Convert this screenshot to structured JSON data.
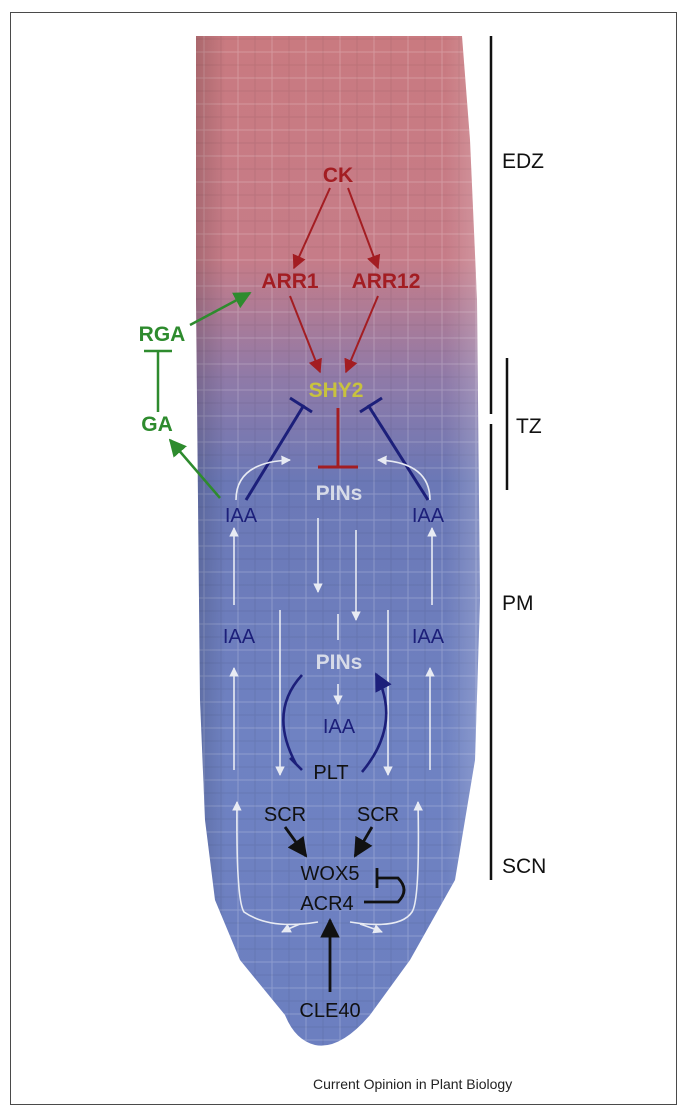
{
  "zones": {
    "edz": "EDZ",
    "tz": "TZ",
    "pm": "PM",
    "scn": "SCN"
  },
  "nodes": {
    "ck": "CK",
    "arr1": "ARR1",
    "arr12": "ARR12",
    "shy2": "SHY2",
    "rga": "RGA",
    "ga": "GA",
    "pins_top": "PINs",
    "pins_mid": "PINs",
    "iaa_left_top": "IAA",
    "iaa_right_top": "IAA",
    "iaa_left_mid": "IAA",
    "iaa_right_mid": "IAA",
    "iaa_center": "IAA",
    "plt": "PLT",
    "scr_left": "SCR",
    "scr_right": "SCR",
    "wox5": "WOX5",
    "acr4": "ACR4",
    "cle40": "CLE40"
  },
  "credit": "Current Opinion in Plant Biology",
  "colors": {
    "cytokinin": "#a31d22",
    "shy2": "#c8c23e",
    "gibberellin": "#2e8b2e",
    "auxin": "#1c1f7a",
    "pins": "#d7dbe8",
    "stem": "#111111"
  }
}
